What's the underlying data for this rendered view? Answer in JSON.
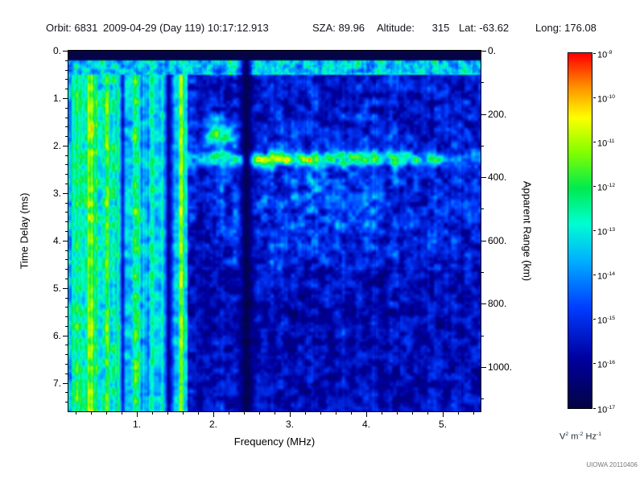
{
  "header": {
    "items": [
      "Orbit: 6831",
      "2009-04-29 (Day 119) 10:17:12.913",
      "SZA: 89.96",
      "Altitude:      315",
      "Lat: -63.62",
      "Long: 176.08"
    ]
  },
  "chart_data": {
    "type": "heatmap",
    "xlabel": "Frequency (MHz)",
    "ylabel_left": "Time Delay (ms)",
    "ylabel_right": "Apparent Range (km)",
    "x_range_mhz": [
      0.1,
      5.5
    ],
    "x_major_ticks": [
      {
        "value": 1,
        "label": "1."
      },
      {
        "value": 2,
        "label": "2."
      },
      {
        "value": 3,
        "label": "3."
      },
      {
        "value": 4,
        "label": "4."
      },
      {
        "value": 5,
        "label": "5."
      }
    ],
    "x_minor_step_mhz": 0.2,
    "y_range_ms": [
      0,
      7.6
    ],
    "y_major_ticks_left": [
      {
        "value": 0,
        "label": "0."
      },
      {
        "value": 1,
        "label": "1."
      },
      {
        "value": 2,
        "label": "2."
      },
      {
        "value": 3,
        "label": "3."
      },
      {
        "value": 4,
        "label": "4."
      },
      {
        "value": 5,
        "label": "5."
      },
      {
        "value": 6,
        "label": "6."
      },
      {
        "value": 7,
        "label": "7."
      }
    ],
    "y_minor_step_ms": 0.2,
    "right_axis_range_km": [
      0,
      1140
    ],
    "y_major_ticks_right": [
      {
        "value": 0,
        "label": "0."
      },
      {
        "value": 200,
        "label": "200."
      },
      {
        "value": 400,
        "label": "400."
      },
      {
        "value": 600,
        "label": "600."
      },
      {
        "value": 800,
        "label": "800."
      },
      {
        "value": 1000,
        "label": "1000."
      }
    ],
    "y_minor_step_km": 100,
    "colorbar": {
      "scale": "log",
      "max": "1e-9",
      "min": "1e-17",
      "tick_base": "10",
      "tick_exponents": [
        "-9",
        "-10",
        "-11",
        "-12",
        "-13",
        "-14",
        "-15",
        "-16",
        "-17"
      ],
      "unit_parts": [
        {
          "text": "V",
          "sup": "2"
        },
        {
          "text": "m",
          "sup": "-2"
        },
        {
          "text": "Hz",
          "sup": "-1"
        }
      ]
    },
    "colormap_stops": [
      [
        0.0,
        [
          4,
          4,
          70
        ]
      ],
      [
        0.14,
        [
          0,
          0,
          160
        ]
      ],
      [
        0.28,
        [
          0,
          60,
          255
        ]
      ],
      [
        0.42,
        [
          0,
          180,
          255
        ]
      ],
      [
        0.52,
        [
          0,
          255,
          210
        ]
      ],
      [
        0.62,
        [
          0,
          235,
          80
        ]
      ],
      [
        0.72,
        [
          130,
          255,
          0
        ]
      ],
      [
        0.82,
        [
          255,
          255,
          0
        ]
      ],
      [
        0.91,
        [
          255,
          140,
          0
        ]
      ],
      [
        1.0,
        [
          255,
          0,
          0
        ]
      ]
    ],
    "features": [
      "Intense banded emission below ~1.6 MHz with vertical striping, locally saturated to yellow",
      "Bright return band near 0.3 ms delay across all frequencies",
      "Strong horizontal echo trace near 2.2-2.4 ms delay (apparent range ~350 km) from ~1.8 MHz to the right edge, brightest 2.8-4.5 MHz",
      "Hook-shaped oblique echo near 2 MHz between ~1.4 and 2.1 ms",
      "Quiet black vertical band near 2.4 MHz and a narrow dark column near 1.4 MHz",
      "Diffuse weak scattered echoes roughly 2.5-4.5 MHz at 2.5-4.5 ms over a dark blue noise floor"
    ]
  },
  "credit": "UIOWA 20110406"
}
